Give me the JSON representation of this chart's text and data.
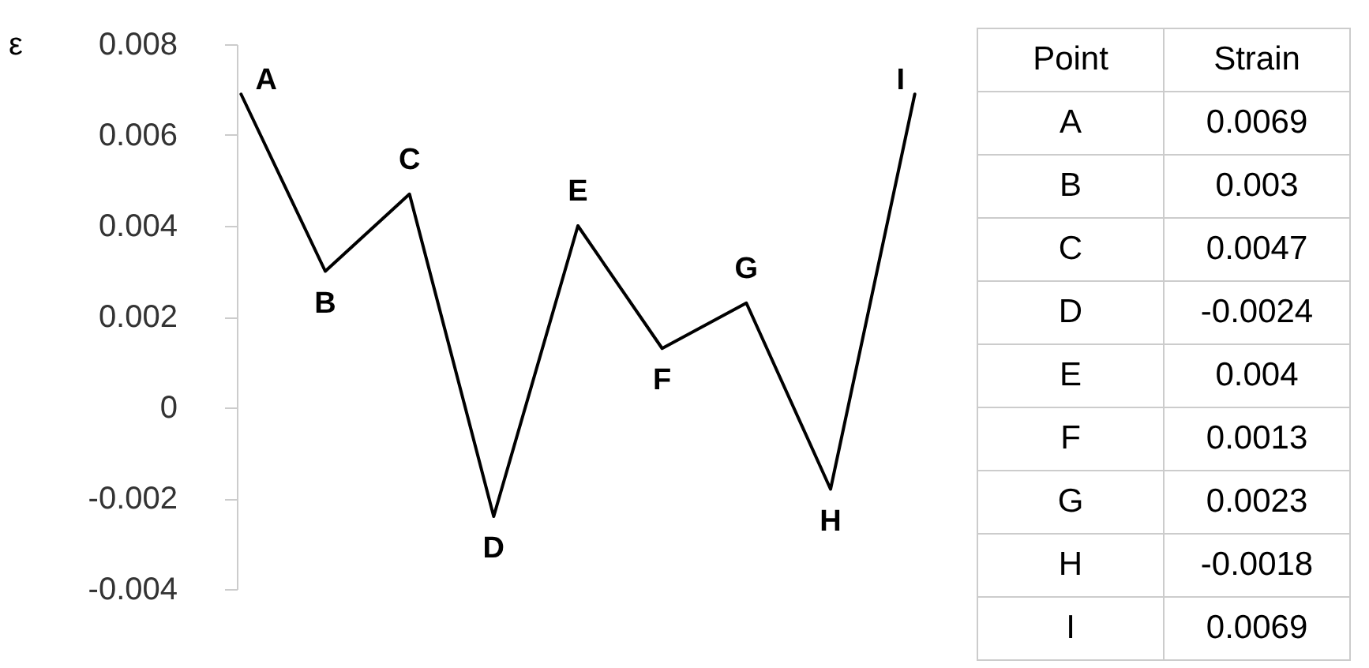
{
  "chart_data": [
    {
      "type": "line",
      "ylabel": "ε",
      "categories": [
        "A",
        "B",
        "C",
        "D",
        "E",
        "F",
        "G",
        "H",
        "I"
      ],
      "values": [
        0.0069,
        0.003,
        0.0047,
        -0.0024,
        0.004,
        0.0013,
        0.0023,
        -0.0018,
        0.0069
      ],
      "color": "#000000",
      "ylim": [
        -0.004,
        0.008
      ],
      "yticks": [
        -0.004,
        -0.002,
        0,
        0.002,
        0.004,
        0.006,
        0.008
      ],
      "grid": false,
      "marker": "none",
      "tick_labels": "y"
    },
    {
      "type": "other",
      "annotations": [
        "Point",
        "Strain"
      ],
      "categories": [
        "A",
        "B",
        "C",
        "D",
        "E",
        "F",
        "G",
        "H",
        "I"
      ],
      "values": [
        0.0069,
        0.003,
        0.0047,
        -0.0024,
        0.004,
        0.0013,
        0.0023,
        -0.0018,
        0.0069
      ],
      "data_labels": true
    }
  ]
}
